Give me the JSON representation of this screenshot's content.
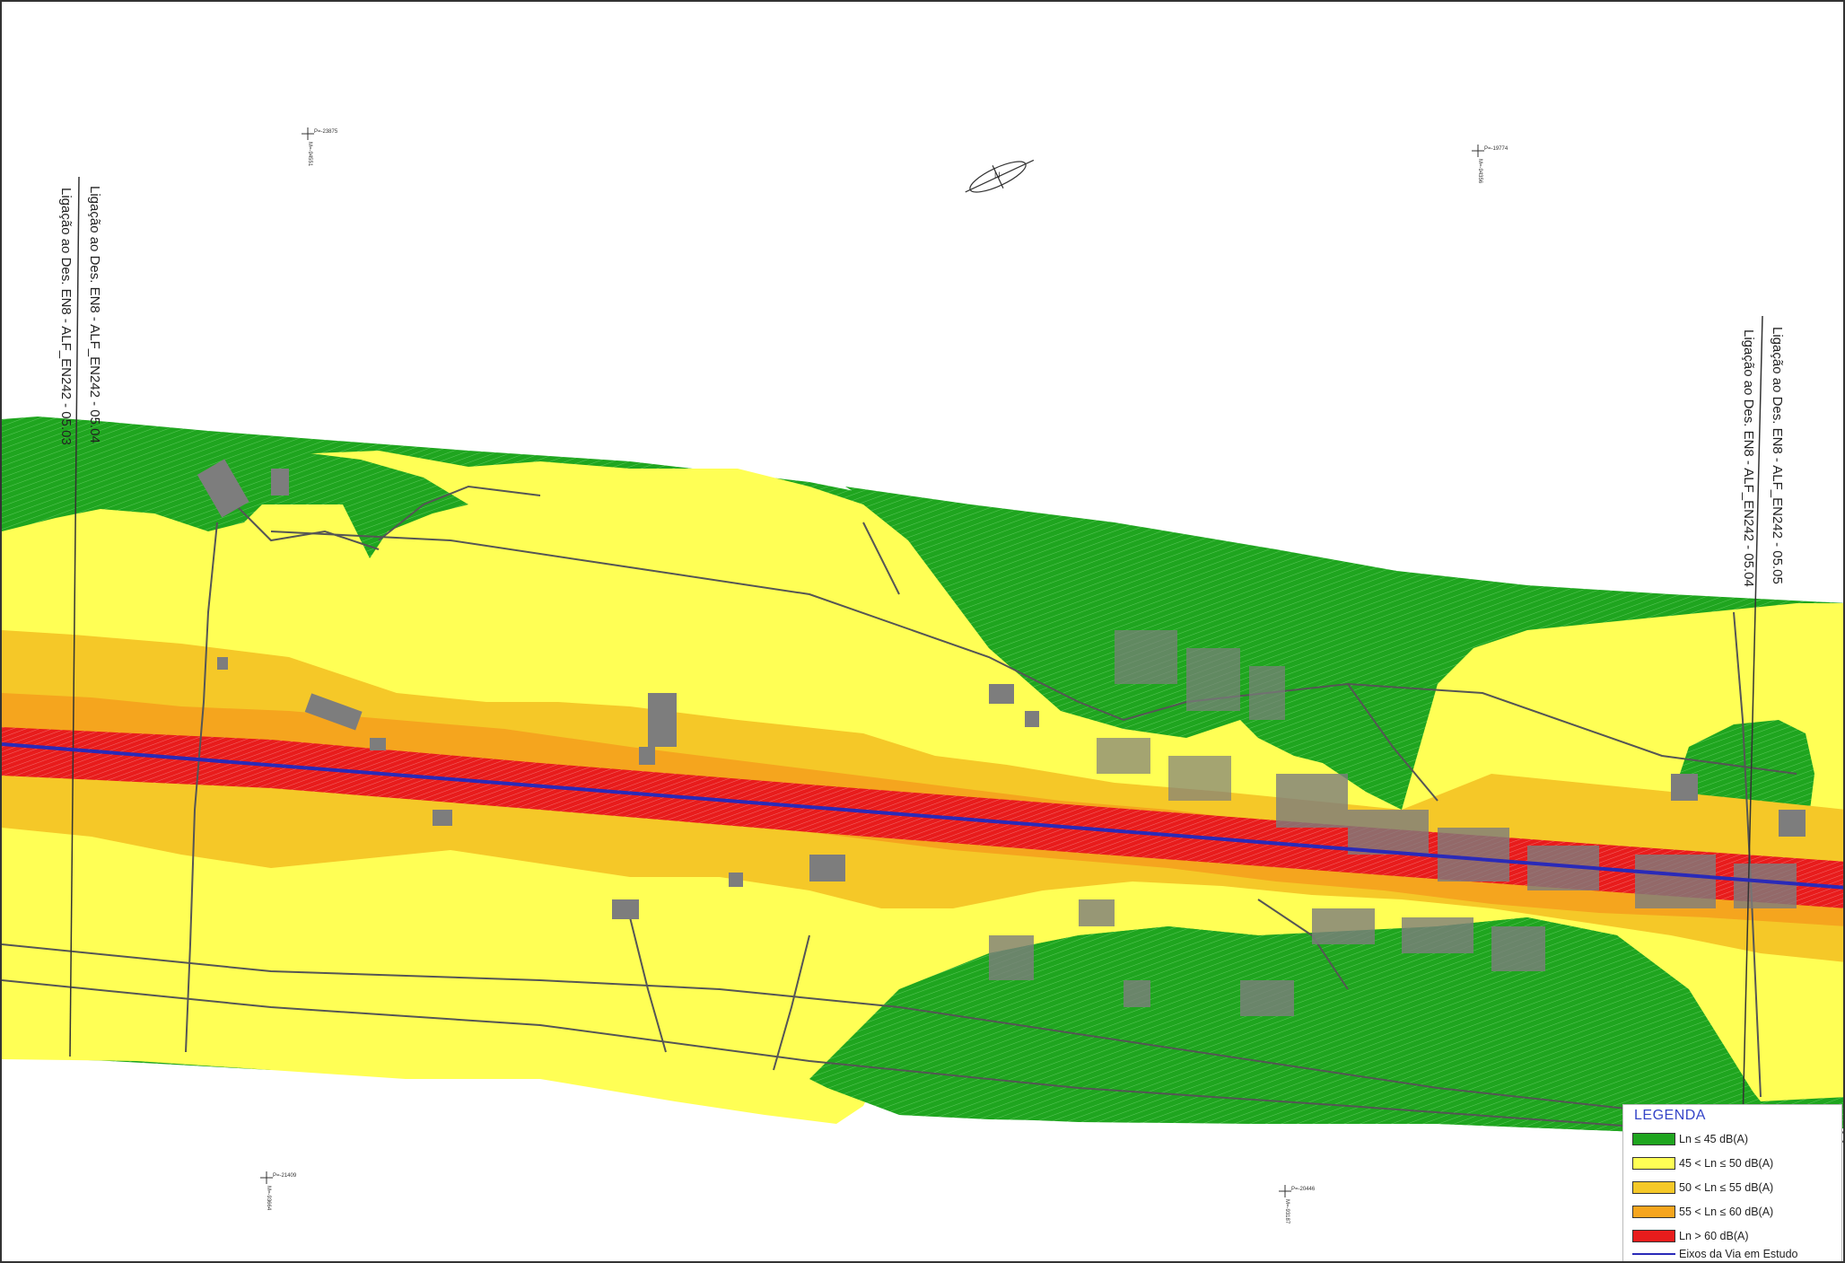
{
  "map": {
    "labels": {
      "left_outer": "Ligação ao Des. EN8 - ALF_EN242 - 05.04",
      "left_inner": "Ligação ao Des. EN8 - ALF_EN242 - 05.03",
      "right_outer": "Ligação ao Des. EN8 - ALF_EN242 - 05.05",
      "right_inner": "Ligação ao Des. EN8 - ALF_EN242 - 05.04"
    },
    "north_arrow_symbol": "N",
    "grid_markers": [
      {
        "id": "tl",
        "h": "P=-23875",
        "v": "M=-94551"
      },
      {
        "id": "tr",
        "h": "P=-19774",
        "v": "M=-94356"
      },
      {
        "id": "bl",
        "h": "P=-21409",
        "v": "M=-93664"
      },
      {
        "id": "br",
        "h": "P=-20446",
        "v": "M=-93187"
      }
    ]
  },
  "legend": {
    "title": "LEGENDA",
    "items": [
      {
        "label": "Ln ≤ 45 dB(A)",
        "color": "#1fa51f"
      },
      {
        "label": "45 < Ln ≤ 50 dB(A)",
        "color": "#ffff55"
      },
      {
        "label": "50 < Ln ≤ 55 dB(A)",
        "color": "#f5c828"
      },
      {
        "label": "55 < Ln ≤ 60 dB(A)",
        "color": "#f5a51e"
      },
      {
        "label": "Ln > 60 dB(A)",
        "color": "#e81c1c"
      }
    ],
    "line_item": {
      "label": "Eixos da Via em Estudo",
      "color": "#2a2ab8"
    }
  },
  "colors": {
    "green": "#1fa51f",
    "yellow": "#ffff55",
    "light_orange": "#f5c828",
    "orange": "#f5a51e",
    "red": "#e81c1c",
    "axis": "#2a2ab8",
    "building": "#7d7d7d",
    "road": "#555555"
  }
}
